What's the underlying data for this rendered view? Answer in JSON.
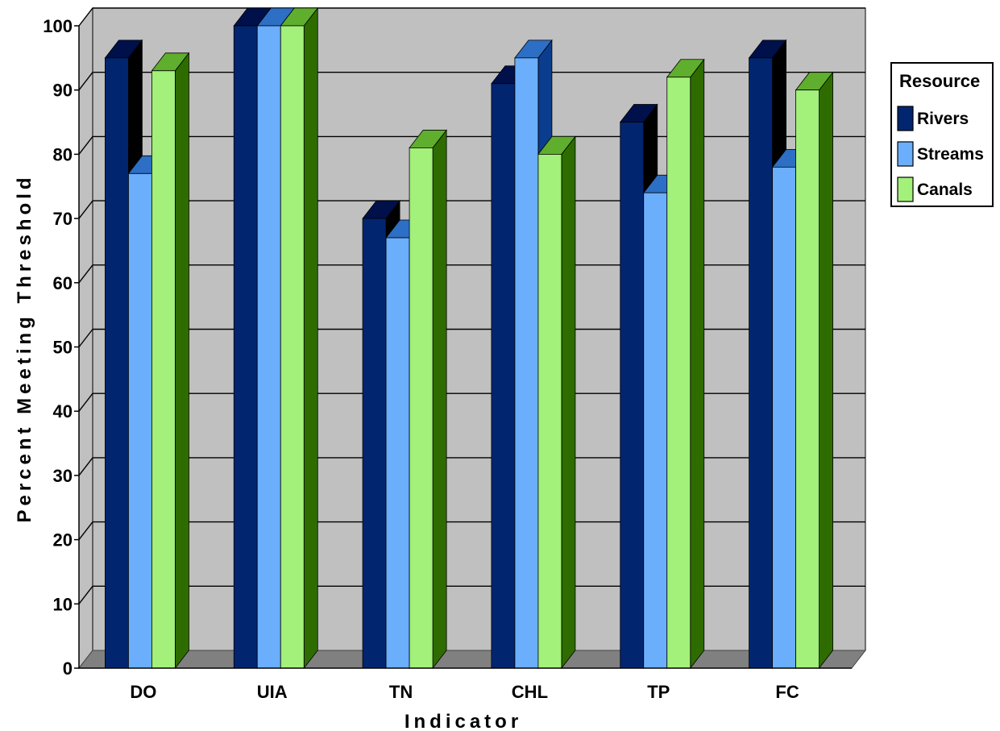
{
  "chart_data": {
    "type": "bar",
    "title": "",
    "xlabel": "Indicator",
    "ylabel": "Percent Meeting Threshold",
    "ylim": [
      0,
      100
    ],
    "yticks": [
      "0",
      "10",
      "20",
      "30",
      "40",
      "50",
      "60",
      "70",
      "80",
      "90",
      "100"
    ],
    "categories": [
      "DO",
      "UIA",
      "TN",
      "CHL",
      "TP",
      "FC"
    ],
    "series": [
      {
        "name": "Rivers",
        "values": [
          95,
          100,
          70,
          91,
          85,
          95
        ]
      },
      {
        "name": "Streams",
        "values": [
          77,
          100,
          67,
          95,
          74,
          78
        ]
      },
      {
        "name": "Canals",
        "values": [
          93,
          100,
          81,
          80,
          92,
          90
        ]
      }
    ],
    "legend": {
      "title": "Resource",
      "position": "right"
    },
    "grid": true,
    "colors": {
      "Rivers": {
        "front": "#022570",
        "side": "#000000",
        "top": "#00104a"
      },
      "Streams": {
        "front": "#6aaefc",
        "side": "#0a3d8e",
        "top": "#2d6fc4"
      },
      "Canals": {
        "front": "#a3f07a",
        "side": "#2e6c00",
        "top": "#5fae2d"
      },
      "wall": "#c0c0c0",
      "floor": "#808080",
      "gridline": "#000000"
    }
  }
}
